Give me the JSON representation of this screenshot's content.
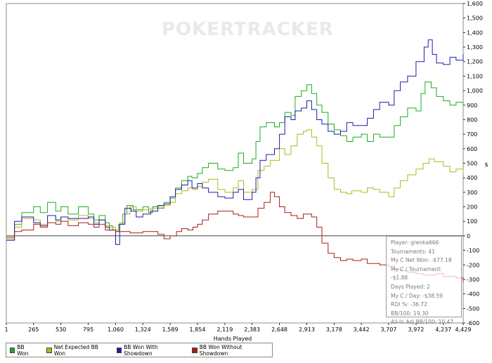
{
  "chart_data": {
    "type": "line",
    "title": "",
    "watermark": "POKERTRACKER",
    "xlabel": "Hands Played",
    "ylabel": "$",
    "xlim": [
      1,
      4429
    ],
    "ylim": [
      -600,
      1600
    ],
    "x_ticks": [
      "1",
      "265",
      "530",
      "795",
      "1,060",
      "1,324",
      "1,589",
      "1,854",
      "2,119",
      "2,383",
      "2,648",
      "2,913",
      "3,178",
      "3,442",
      "3,707",
      "3,972",
      "4,237",
      "4,429"
    ],
    "x_tick_values": [
      1,
      265,
      530,
      795,
      1060,
      1324,
      1589,
      1854,
      2119,
      2383,
      2648,
      2913,
      3178,
      3442,
      3707,
      3972,
      4237,
      4429
    ],
    "y_ticks": [
      "1,600",
      "1,500",
      "1,400",
      "1,300",
      "1,200",
      "1,100",
      "1,000",
      "900",
      "800",
      "700",
      "600",
      "500",
      "400",
      "300",
      "200",
      "100",
      "0",
      "-100",
      "-200",
      "-300",
      "-400",
      "-500",
      "-600"
    ],
    "y_tick_values": [
      1600,
      1500,
      1400,
      1300,
      1200,
      1100,
      1000,
      900,
      800,
      700,
      600,
      500,
      400,
      300,
      200,
      100,
      0,
      -100,
      -200,
      -300,
      -400,
      -500,
      -600
    ],
    "series": [
      {
        "name": "BB Won",
        "color": "#1faa1f",
        "points": [
          [
            1,
            -30
          ],
          [
            80,
            80
          ],
          [
            150,
            160
          ],
          [
            265,
            200
          ],
          [
            330,
            160
          ],
          [
            400,
            230
          ],
          [
            480,
            170
          ],
          [
            530,
            200
          ],
          [
            600,
            150
          ],
          [
            700,
            200
          ],
          [
            795,
            150
          ],
          [
            850,
            110
          ],
          [
            900,
            140
          ],
          [
            960,
            90
          ],
          [
            1000,
            70
          ],
          [
            1030,
            40
          ],
          [
            1060,
            30
          ],
          [
            1090,
            80
          ],
          [
            1130,
            150
          ],
          [
            1170,
            210
          ],
          [
            1230,
            180
          ],
          [
            1324,
            200
          ],
          [
            1380,
            160
          ],
          [
            1420,
            200
          ],
          [
            1470,
            190
          ],
          [
            1530,
            230
          ],
          [
            1589,
            260
          ],
          [
            1640,
            330
          ],
          [
            1700,
            380
          ],
          [
            1760,
            410
          ],
          [
            1800,
            400
          ],
          [
            1854,
            430
          ],
          [
            1900,
            470
          ],
          [
            1960,
            500
          ],
          [
            2050,
            460
          ],
          [
            2119,
            450
          ],
          [
            2200,
            470
          ],
          [
            2250,
            570
          ],
          [
            2300,
            500
          ],
          [
            2383,
            530
          ],
          [
            2420,
            650
          ],
          [
            2460,
            750
          ],
          [
            2520,
            780
          ],
          [
            2600,
            750
          ],
          [
            2648,
            780
          ],
          [
            2700,
            850
          ],
          [
            2760,
            830
          ],
          [
            2800,
            960
          ],
          [
            2860,
            1000
          ],
          [
            2913,
            1040
          ],
          [
            2960,
            980
          ],
          [
            3010,
            900
          ],
          [
            3060,
            850
          ],
          [
            3120,
            770
          ],
          [
            3178,
            730
          ],
          [
            3240,
            690
          ],
          [
            3300,
            650
          ],
          [
            3360,
            680
          ],
          [
            3442,
            700
          ],
          [
            3500,
            650
          ],
          [
            3560,
            700
          ],
          [
            3620,
            680
          ],
          [
            3707,
            680
          ],
          [
            3760,
            760
          ],
          [
            3820,
            820
          ],
          [
            3890,
            880
          ],
          [
            3972,
            860
          ],
          [
            4020,
            980
          ],
          [
            4060,
            1060
          ],
          [
            4120,
            1020
          ],
          [
            4170,
            960
          ],
          [
            4237,
            930
          ],
          [
            4300,
            900
          ],
          [
            4360,
            920
          ],
          [
            4429,
            910
          ]
        ]
      },
      {
        "name": "Net Expected BB Won",
        "color": "#b5b51e",
        "points": [
          [
            1,
            -20
          ],
          [
            80,
            60
          ],
          [
            150,
            120
          ],
          [
            265,
            110
          ],
          [
            330,
            80
          ],
          [
            400,
            140
          ],
          [
            480,
            100
          ],
          [
            530,
            130
          ],
          [
            600,
            110
          ],
          [
            700,
            140
          ],
          [
            795,
            120
          ],
          [
            850,
            90
          ],
          [
            900,
            110
          ],
          [
            960,
            70
          ],
          [
            1000,
            60
          ],
          [
            1060,
            40
          ],
          [
            1100,
            90
          ],
          [
            1150,
            150
          ],
          [
            1200,
            200
          ],
          [
            1260,
            170
          ],
          [
            1324,
            180
          ],
          [
            1400,
            190
          ],
          [
            1470,
            200
          ],
          [
            1530,
            210
          ],
          [
            1589,
            230
          ],
          [
            1640,
            290
          ],
          [
            1700,
            310
          ],
          [
            1760,
            330
          ],
          [
            1810,
            320
          ],
          [
            1854,
            340
          ],
          [
            1900,
            370
          ],
          [
            1960,
            390
          ],
          [
            2050,
            320
          ],
          [
            2119,
            300
          ],
          [
            2200,
            330
          ],
          [
            2250,
            380
          ],
          [
            2300,
            300
          ],
          [
            2383,
            320
          ],
          [
            2440,
            450
          ],
          [
            2500,
            480
          ],
          [
            2560,
            520
          ],
          [
            2648,
            600
          ],
          [
            2700,
            560
          ],
          [
            2760,
            620
          ],
          [
            2820,
            700
          ],
          [
            2880,
            720
          ],
          [
            2913,
            730
          ],
          [
            2960,
            680
          ],
          [
            3010,
            620
          ],
          [
            3060,
            500
          ],
          [
            3120,
            400
          ],
          [
            3178,
            320
          ],
          [
            3240,
            300
          ],
          [
            3300,
            290
          ],
          [
            3350,
            310
          ],
          [
            3442,
            300
          ],
          [
            3500,
            330
          ],
          [
            3560,
            320
          ],
          [
            3620,
            300
          ],
          [
            3707,
            270
          ],
          [
            3760,
            330
          ],
          [
            3820,
            380
          ],
          [
            3890,
            420
          ],
          [
            3972,
            460
          ],
          [
            4040,
            500
          ],
          [
            4100,
            530
          ],
          [
            4150,
            510
          ],
          [
            4237,
            480
          ],
          [
            4300,
            440
          ],
          [
            4360,
            460
          ],
          [
            4429,
            430
          ]
        ]
      },
      {
        "name": "BB Won With Showdown",
        "color": "#1c1cab",
        "points": [
          [
            1,
            -30
          ],
          [
            80,
            100
          ],
          [
            150,
            130
          ],
          [
            265,
            90
          ],
          [
            330,
            70
          ],
          [
            400,
            140
          ],
          [
            480,
            110
          ],
          [
            530,
            130
          ],
          [
            600,
            120
          ],
          [
            700,
            120
          ],
          [
            795,
            130
          ],
          [
            850,
            80
          ],
          [
            900,
            110
          ],
          [
            960,
            60
          ],
          [
            1000,
            40
          ],
          [
            1060,
            -60
          ],
          [
            1100,
            80
          ],
          [
            1150,
            190
          ],
          [
            1210,
            170
          ],
          [
            1260,
            130
          ],
          [
            1324,
            150
          ],
          [
            1400,
            170
          ],
          [
            1470,
            210
          ],
          [
            1530,
            220
          ],
          [
            1589,
            270
          ],
          [
            1640,
            320
          ],
          [
            1700,
            350
          ],
          [
            1760,
            380
          ],
          [
            1800,
            330
          ],
          [
            1854,
            360
          ],
          [
            1900,
            330
          ],
          [
            1960,
            300
          ],
          [
            2050,
            270
          ],
          [
            2119,
            260
          ],
          [
            2200,
            300
          ],
          [
            2250,
            320
          ],
          [
            2300,
            250
          ],
          [
            2383,
            300
          ],
          [
            2420,
            400
          ],
          [
            2460,
            520
          ],
          [
            2520,
            560
          ],
          [
            2600,
            600
          ],
          [
            2648,
            700
          ],
          [
            2700,
            820
          ],
          [
            2760,
            800
          ],
          [
            2800,
            860
          ],
          [
            2860,
            880
          ],
          [
            2913,
            930
          ],
          [
            2960,
            870
          ],
          [
            3010,
            800
          ],
          [
            3060,
            770
          ],
          [
            3120,
            720
          ],
          [
            3178,
            700
          ],
          [
            3240,
            720
          ],
          [
            3300,
            780
          ],
          [
            3360,
            760
          ],
          [
            3442,
            760
          ],
          [
            3500,
            810
          ],
          [
            3560,
            870
          ],
          [
            3620,
            920
          ],
          [
            3707,
            900
          ],
          [
            3760,
            1000
          ],
          [
            3820,
            1060
          ],
          [
            3890,
            1100
          ],
          [
            3972,
            1200
          ],
          [
            4050,
            1300
          ],
          [
            4090,
            1350
          ],
          [
            4130,
            1250
          ],
          [
            4170,
            1190
          ],
          [
            4237,
            1180
          ],
          [
            4300,
            1230
          ],
          [
            4360,
            1210
          ],
          [
            4429,
            1250
          ]
        ]
      },
      {
        "name": "BB Won Without Showdown",
        "color": "#a81b1b",
        "points": [
          [
            1,
            -10
          ],
          [
            80,
            30
          ],
          [
            150,
            40
          ],
          [
            265,
            80
          ],
          [
            330,
            60
          ],
          [
            400,
            90
          ],
          [
            480,
            80
          ],
          [
            530,
            100
          ],
          [
            600,
            70
          ],
          [
            700,
            90
          ],
          [
            795,
            80
          ],
          [
            850,
            60
          ],
          [
            900,
            80
          ],
          [
            960,
            40
          ],
          [
            1060,
            30
          ],
          [
            1100,
            30
          ],
          [
            1200,
            20
          ],
          [
            1324,
            30
          ],
          [
            1400,
            30
          ],
          [
            1470,
            10
          ],
          [
            1530,
            -20
          ],
          [
            1589,
            0
          ],
          [
            1650,
            30
          ],
          [
            1700,
            50
          ],
          [
            1760,
            40
          ],
          [
            1810,
            60
          ],
          [
            1854,
            80
          ],
          [
            1900,
            110
          ],
          [
            1960,
            150
          ],
          [
            2050,
            170
          ],
          [
            2119,
            170
          ],
          [
            2200,
            150
          ],
          [
            2250,
            140
          ],
          [
            2300,
            130
          ],
          [
            2383,
            130
          ],
          [
            2440,
            190
          ],
          [
            2500,
            230
          ],
          [
            2560,
            300
          ],
          [
            2600,
            270
          ],
          [
            2648,
            200
          ],
          [
            2700,
            160
          ],
          [
            2760,
            140
          ],
          [
            2820,
            120
          ],
          [
            2880,
            150
          ],
          [
            2913,
            150
          ],
          [
            2960,
            130
          ],
          [
            3010,
            60
          ],
          [
            3060,
            -50
          ],
          [
            3120,
            -120
          ],
          [
            3178,
            -150
          ],
          [
            3240,
            -170
          ],
          [
            3300,
            -160
          ],
          [
            3360,
            -170
          ],
          [
            3442,
            -160
          ],
          [
            3500,
            -190
          ],
          [
            3560,
            -190
          ],
          [
            3620,
            -200
          ],
          [
            3707,
            -210
          ],
          [
            3760,
            -230
          ],
          [
            3820,
            -240
          ],
          [
            3890,
            -250
          ],
          [
            3972,
            -260
          ],
          [
            4040,
            -270
          ],
          [
            4100,
            -270
          ],
          [
            4170,
            -260
          ],
          [
            4237,
            -280
          ],
          [
            4300,
            -280
          ],
          [
            4360,
            -290
          ],
          [
            4429,
            -320
          ]
        ]
      }
    ],
    "legend_position": "bottom-left"
  },
  "stats": {
    "player": "Player: grenka666",
    "tournaments": "Tournaments: 41",
    "net_won": "My C Net Won: -$77.18",
    "per_tournament": "My C / Tournament: -$1.88",
    "days_played": "Days Played: 2",
    "per_day": "My C / Day: -$38.59",
    "roi": "ROI %: -36.72",
    "bb100": "BB/100: 19.30",
    "allin_bb100": "All-In Adj BB/100: 10.47"
  },
  "legend": {
    "items": [
      {
        "label": "BB Won",
        "color": "#1faa1f"
      },
      {
        "label": "Net Expected BB Won",
        "color": "#b5b51e"
      },
      {
        "label": "BB Won With Showdown",
        "color": "#1c1cab"
      },
      {
        "label": "BB Won Without Showdown",
        "color": "#a81b1b"
      }
    ]
  }
}
